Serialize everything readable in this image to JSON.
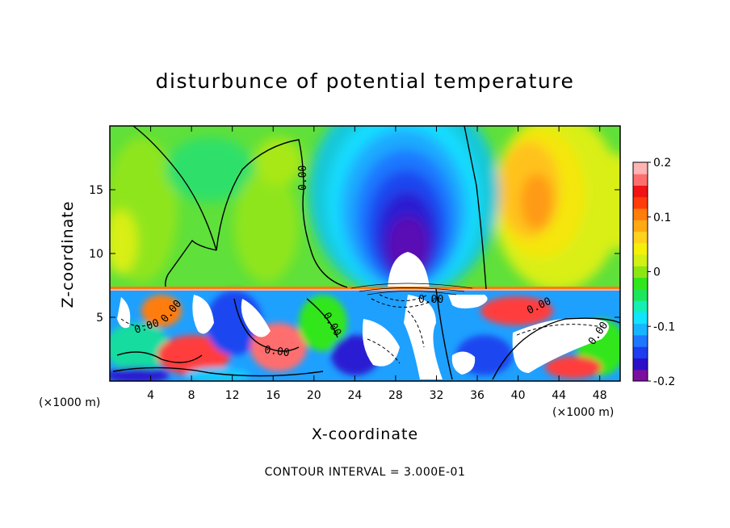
{
  "chart_data": {
    "type": "heatmap",
    "title": "disturbunce of potential temperature",
    "xlabel": "X-coordinate",
    "ylabel": "Z-coordinate",
    "x_unit": "(×1000 m)",
    "xlim": [
      0,
      50
    ],
    "ylim": [
      0,
      20
    ],
    "x_ticks": [
      4,
      8,
      12,
      16,
      20,
      24,
      28,
      32,
      36,
      40,
      44,
      48
    ],
    "y_ticks": [
      5,
      10,
      15
    ],
    "colorbar": {
      "range": [
        -0.2,
        0.2
      ],
      "tick_labels": [
        "0.2",
        "0.1",
        "0",
        "-0.1",
        "-0.2"
      ],
      "colors": [
        "#7b0fa0",
        "#2a0fc8",
        "#1e3cf0",
        "#1e78ff",
        "#17b4ff",
        "#12e4ff",
        "#14f0b4",
        "#1ee65a",
        "#32e61e",
        "#8ce614",
        "#d2f014",
        "#f5f00a",
        "#ffd21e",
        "#ffaa14",
        "#ff7d0a",
        "#ff3c0a",
        "#f01414",
        "#ff6e6e",
        "#ffb4b4"
      ]
    },
    "contour_labels": [
      "0.00",
      "0.00",
      "0.00",
      "0.00",
      "0.00",
      "0.00",
      "0.00",
      "0.00"
    ],
    "contour_interval_text": "CONTOUR INTERVAL = 3.000E-01",
    "features": [
      {
        "name": "cold anomaly",
        "x_center": 30,
        "z_center": 14,
        "value": -0.18
      },
      {
        "name": "warm anomaly",
        "x_center": 42,
        "z_center": 15,
        "value": 0.12
      },
      {
        "name": "turbulent layer",
        "z_top": 7.3
      }
    ]
  }
}
